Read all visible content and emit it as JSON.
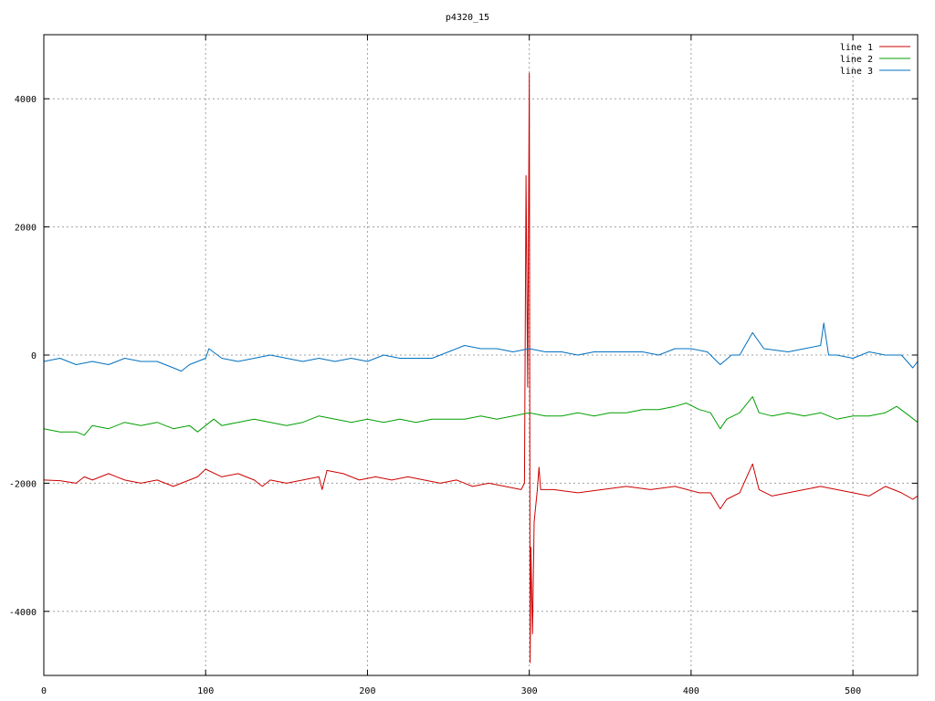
{
  "chart_data": {
    "type": "line",
    "title": "p4320_15",
    "xlabel": "",
    "ylabel": "",
    "xlim": [
      0,
      540
    ],
    "ylim": [
      -5000,
      5000
    ],
    "x_ticks": [
      0,
      100,
      200,
      300,
      400,
      500
    ],
    "y_ticks": [
      -4000,
      -2000,
      0,
      2000,
      4000
    ],
    "grid": true,
    "legend_position": "top-right",
    "series": [
      {
        "name": "line 1",
        "color": "#cc0000",
        "points": [
          [
            0,
            -1950
          ],
          [
            10,
            -1960
          ],
          [
            20,
            -2000
          ],
          [
            25,
            -1900
          ],
          [
            30,
            -1950
          ],
          [
            40,
            -1850
          ],
          [
            50,
            -1950
          ],
          [
            60,
            -2000
          ],
          [
            70,
            -1950
          ],
          [
            80,
            -2050
          ],
          [
            85,
            -2000
          ],
          [
            95,
            -1900
          ],
          [
            100,
            -1780
          ],
          [
            110,
            -1900
          ],
          [
            120,
            -1850
          ],
          [
            130,
            -1950
          ],
          [
            135,
            -2050
          ],
          [
            140,
            -1950
          ],
          [
            150,
            -2000
          ],
          [
            160,
            -1950
          ],
          [
            170,
            -1900
          ],
          [
            172,
            -2100
          ],
          [
            175,
            -1800
          ],
          [
            185,
            -1850
          ],
          [
            195,
            -1950
          ],
          [
            205,
            -1900
          ],
          [
            215,
            -1950
          ],
          [
            225,
            -1900
          ],
          [
            235,
            -1950
          ],
          [
            245,
            -2000
          ],
          [
            255,
            -1950
          ],
          [
            265,
            -2050
          ],
          [
            275,
            -2000
          ],
          [
            285,
            -2050
          ],
          [
            295,
            -2100
          ],
          [
            297,
            -2000
          ],
          [
            298,
            2800
          ],
          [
            299,
            -500
          ],
          [
            300,
            4400
          ],
          [
            300.5,
            -4800
          ],
          [
            301,
            -3000
          ],
          [
            302,
            -4350
          ],
          [
            303,
            -2600
          ],
          [
            305,
            -2100
          ],
          [
            306,
            -1750
          ],
          [
            307,
            -2100
          ],
          [
            315,
            -2100
          ],
          [
            330,
            -2150
          ],
          [
            345,
            -2100
          ],
          [
            360,
            -2050
          ],
          [
            375,
            -2100
          ],
          [
            390,
            -2050
          ],
          [
            405,
            -2150
          ],
          [
            412,
            -2150
          ],
          [
            418,
            -2400
          ],
          [
            422,
            -2250
          ],
          [
            430,
            -2150
          ],
          [
            438,
            -1700
          ],
          [
            442,
            -2100
          ],
          [
            450,
            -2200
          ],
          [
            460,
            -2150
          ],
          [
            470,
            -2100
          ],
          [
            480,
            -2050
          ],
          [
            490,
            -2100
          ],
          [
            500,
            -2150
          ],
          [
            510,
            -2200
          ],
          [
            520,
            -2050
          ],
          [
            530,
            -2150
          ],
          [
            537,
            -2250
          ],
          [
            540,
            -2200
          ]
        ]
      },
      {
        "name": "line 2",
        "color": "#00a000",
        "points": [
          [
            0,
            -1150
          ],
          [
            10,
            -1200
          ],
          [
            20,
            -1200
          ],
          [
            25,
            -1250
          ],
          [
            30,
            -1100
          ],
          [
            40,
            -1150
          ],
          [
            50,
            -1050
          ],
          [
            60,
            -1100
          ],
          [
            70,
            -1050
          ],
          [
            80,
            -1150
          ],
          [
            90,
            -1100
          ],
          [
            95,
            -1200
          ],
          [
            100,
            -1100
          ],
          [
            105,
            -1000
          ],
          [
            110,
            -1100
          ],
          [
            120,
            -1050
          ],
          [
            130,
            -1000
          ],
          [
            140,
            -1050
          ],
          [
            150,
            -1100
          ],
          [
            160,
            -1050
          ],
          [
            170,
            -950
          ],
          [
            180,
            -1000
          ],
          [
            190,
            -1050
          ],
          [
            200,
            -1000
          ],
          [
            210,
            -1050
          ],
          [
            220,
            -1000
          ],
          [
            230,
            -1050
          ],
          [
            240,
            -1000
          ],
          [
            250,
            -1000
          ],
          [
            260,
            -1000
          ],
          [
            270,
            -950
          ],
          [
            280,
            -1000
          ],
          [
            290,
            -950
          ],
          [
            300,
            -900
          ],
          [
            310,
            -950
          ],
          [
            320,
            -950
          ],
          [
            330,
            -900
          ],
          [
            340,
            -950
          ],
          [
            350,
            -900
          ],
          [
            360,
            -900
          ],
          [
            370,
            -850
          ],
          [
            380,
            -850
          ],
          [
            390,
            -800
          ],
          [
            397,
            -750
          ],
          [
            405,
            -850
          ],
          [
            412,
            -900
          ],
          [
            418,
            -1150
          ],
          [
            422,
            -1000
          ],
          [
            430,
            -900
          ],
          [
            438,
            -650
          ],
          [
            442,
            -900
          ],
          [
            450,
            -950
          ],
          [
            460,
            -900
          ],
          [
            470,
            -950
          ],
          [
            480,
            -900
          ],
          [
            490,
            -1000
          ],
          [
            500,
            -950
          ],
          [
            510,
            -950
          ],
          [
            520,
            -900
          ],
          [
            527,
            -800
          ],
          [
            535,
            -950
          ],
          [
            540,
            -1050
          ]
        ]
      },
      {
        "name": "line 3",
        "color": "#0070c0",
        "points": [
          [
            0,
            -100
          ],
          [
            10,
            -50
          ],
          [
            20,
            -150
          ],
          [
            30,
            -100
          ],
          [
            40,
            -150
          ],
          [
            50,
            -50
          ],
          [
            60,
            -100
          ],
          [
            70,
            -100
          ],
          [
            80,
            -200
          ],
          [
            85,
            -250
          ],
          [
            90,
            -150
          ],
          [
            100,
            -50
          ],
          [
            102,
            100
          ],
          [
            110,
            -50
          ],
          [
            120,
            -100
          ],
          [
            130,
            -50
          ],
          [
            140,
            0
          ],
          [
            150,
            -50
          ],
          [
            160,
            -100
          ],
          [
            170,
            -50
          ],
          [
            180,
            -100
          ],
          [
            190,
            -50
          ],
          [
            200,
            -100
          ],
          [
            210,
            0
          ],
          [
            220,
            -50
          ],
          [
            230,
            -50
          ],
          [
            240,
            -50
          ],
          [
            250,
            50
          ],
          [
            260,
            150
          ],
          [
            270,
            100
          ],
          [
            280,
            100
          ],
          [
            290,
            50
          ],
          [
            300,
            100
          ],
          [
            310,
            50
          ],
          [
            320,
            50
          ],
          [
            330,
            0
          ],
          [
            340,
            50
          ],
          [
            350,
            50
          ],
          [
            360,
            50
          ],
          [
            370,
            50
          ],
          [
            380,
            0
          ],
          [
            390,
            100
          ],
          [
            400,
            100
          ],
          [
            410,
            50
          ],
          [
            418,
            -150
          ],
          [
            425,
            0
          ],
          [
            430,
            0
          ],
          [
            438,
            350
          ],
          [
            445,
            100
          ],
          [
            460,
            50
          ],
          [
            470,
            100
          ],
          [
            480,
            150
          ],
          [
            482,
            500
          ],
          [
            485,
            0
          ],
          [
            490,
            0
          ],
          [
            500,
            -50
          ],
          [
            510,
            50
          ],
          [
            520,
            0
          ],
          [
            530,
            0
          ],
          [
            537,
            -200
          ],
          [
            540,
            -100
          ]
        ]
      }
    ]
  }
}
